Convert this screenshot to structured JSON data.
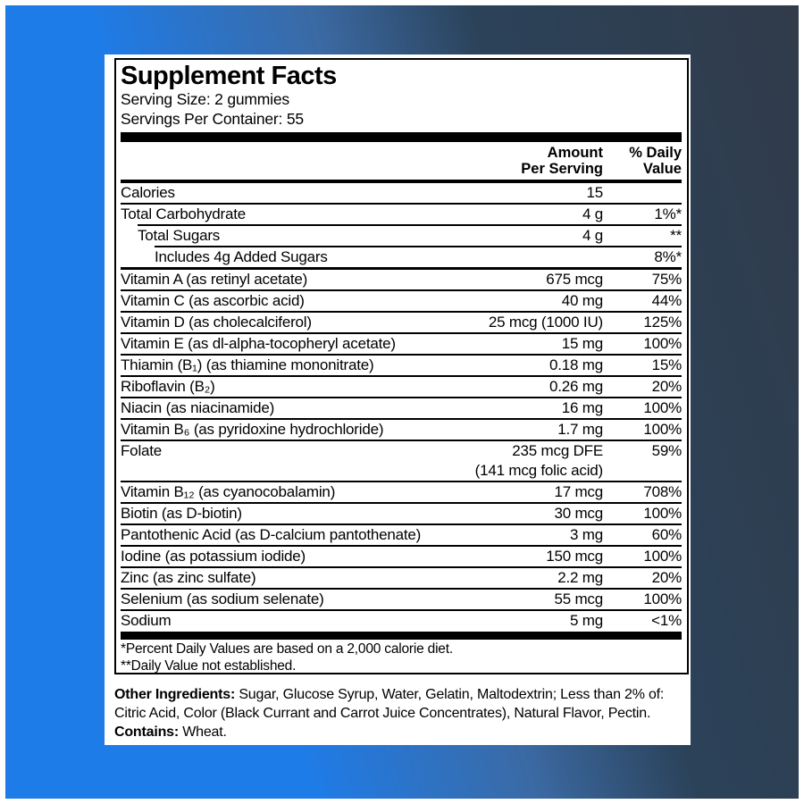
{
  "colors": {
    "background_blue": "#1e7ce9",
    "background_mid_blue": "#3b6aa4",
    "background_navy": "#2b4259",
    "background_slate": "#313b4a",
    "panel_white": "#ffffff",
    "text_ink": "#000000"
  },
  "facts": {
    "title": "Supplement Facts",
    "serving_size": "Serving Size: 2 gummies",
    "servings_per_container": "Servings Per Container: 55",
    "columns": {
      "amount_line1": "Amount",
      "amount_line2": "Per Serving",
      "dv_line1": "% Daily",
      "dv_line2": "Value"
    },
    "rows": [
      {
        "name": "Calories",
        "amount": "15",
        "dv": "",
        "indent": 0
      },
      {
        "name": "Total Carbohydrate",
        "amount": "4 g",
        "dv": "1%*",
        "indent": 0
      },
      {
        "name": "Total Sugars",
        "amount": "4 g",
        "dv": "**",
        "indent": 1
      },
      {
        "name": "Includes 4g Added Sugars",
        "amount": "",
        "dv": "8%*",
        "indent": 2
      },
      {
        "name": "Vitamin A (as retinyl acetate)",
        "amount": "675 mcg",
        "dv": "75%",
        "indent": 0,
        "group_break": true
      },
      {
        "name": "Vitamin C (as ascorbic acid)",
        "amount": "40 mg",
        "dv": "44%",
        "indent": 0
      },
      {
        "name": "Vitamin D (as cholecalciferol)",
        "amount": "25 mcg (1000 IU)",
        "dv": "125%",
        "indent": 0
      },
      {
        "name": "Vitamin E (as dl-alpha-tocopheryl acetate)",
        "amount": "15 mg",
        "dv": "100%",
        "indent": 0
      },
      {
        "name": "Thiamin (B₁) (as thiamine mononitrate)",
        "amount": "0.18 mg",
        "dv": "15%",
        "indent": 0
      },
      {
        "name": "Riboflavin (B₂)",
        "amount": "0.26 mg",
        "dv": "20%",
        "indent": 0
      },
      {
        "name": "Niacin (as niacinamide)",
        "amount": "16 mg",
        "dv": "100%",
        "indent": 0
      },
      {
        "name": "Vitamin B₆ (as pyridoxine hydrochloride)",
        "amount": "1.7 mg",
        "dv": "100%",
        "indent": 0
      },
      {
        "name": "Folate",
        "amount": "235 mcg DFE",
        "amount2": "(141 mcg folic acid)",
        "dv": "59%",
        "indent": 0
      },
      {
        "name": "Vitamin B₁₂ (as cyanocobalamin)",
        "amount": "17 mcg",
        "dv": "708%",
        "indent": 0
      },
      {
        "name": "Biotin (as D-biotin)",
        "amount": "30 mcg",
        "dv": "100%",
        "indent": 0
      },
      {
        "name": "Pantothenic Acid (as D-calcium pantothenate)",
        "amount": "3 mg",
        "dv": "60%",
        "indent": 0
      },
      {
        "name": "Iodine (as potassium iodide)",
        "amount": "150 mcg",
        "dv": "100%",
        "indent": 0
      },
      {
        "name": "Zinc (as zinc sulfate)",
        "amount": "2.2 mg",
        "dv": "20%",
        "indent": 0
      },
      {
        "name": "Selenium (as sodium selenate)",
        "amount": "55 mcg",
        "dv": "100%",
        "indent": 0
      },
      {
        "name": "Sodium",
        "amount": "5 mg",
        "dv": "<1%",
        "indent": 0
      }
    ],
    "footnotes": [
      "*Percent Daily Values are based on a 2,000 calorie diet.",
      "**Daily Value not established."
    ]
  },
  "ingredients": {
    "other_label": "Other Ingredients:",
    "other_text": " Sugar, Glucose Syrup, Water, Gelatin, Maltodextrin; Less than 2% of: Citric Acid, Color (Black Currant and Carrot Juice Concentrates), Natural Flavor, Pectin.",
    "contains_label": "Contains:",
    "contains_text": " Wheat."
  }
}
